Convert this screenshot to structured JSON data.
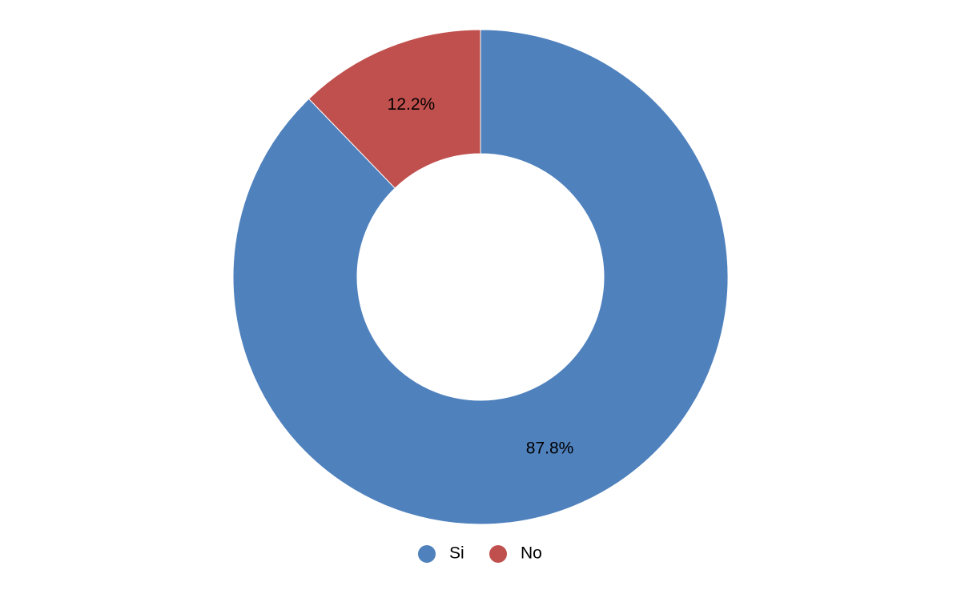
{
  "chart_data": {
    "type": "donut",
    "categories": [
      "Si",
      "No"
    ],
    "values": [
      87.8,
      12.2
    ],
    "value_labels": [
      "87.8%",
      "12.2%"
    ],
    "colors": [
      "#4f81bd",
      "#c0504d"
    ],
    "legend": "bottom"
  }
}
